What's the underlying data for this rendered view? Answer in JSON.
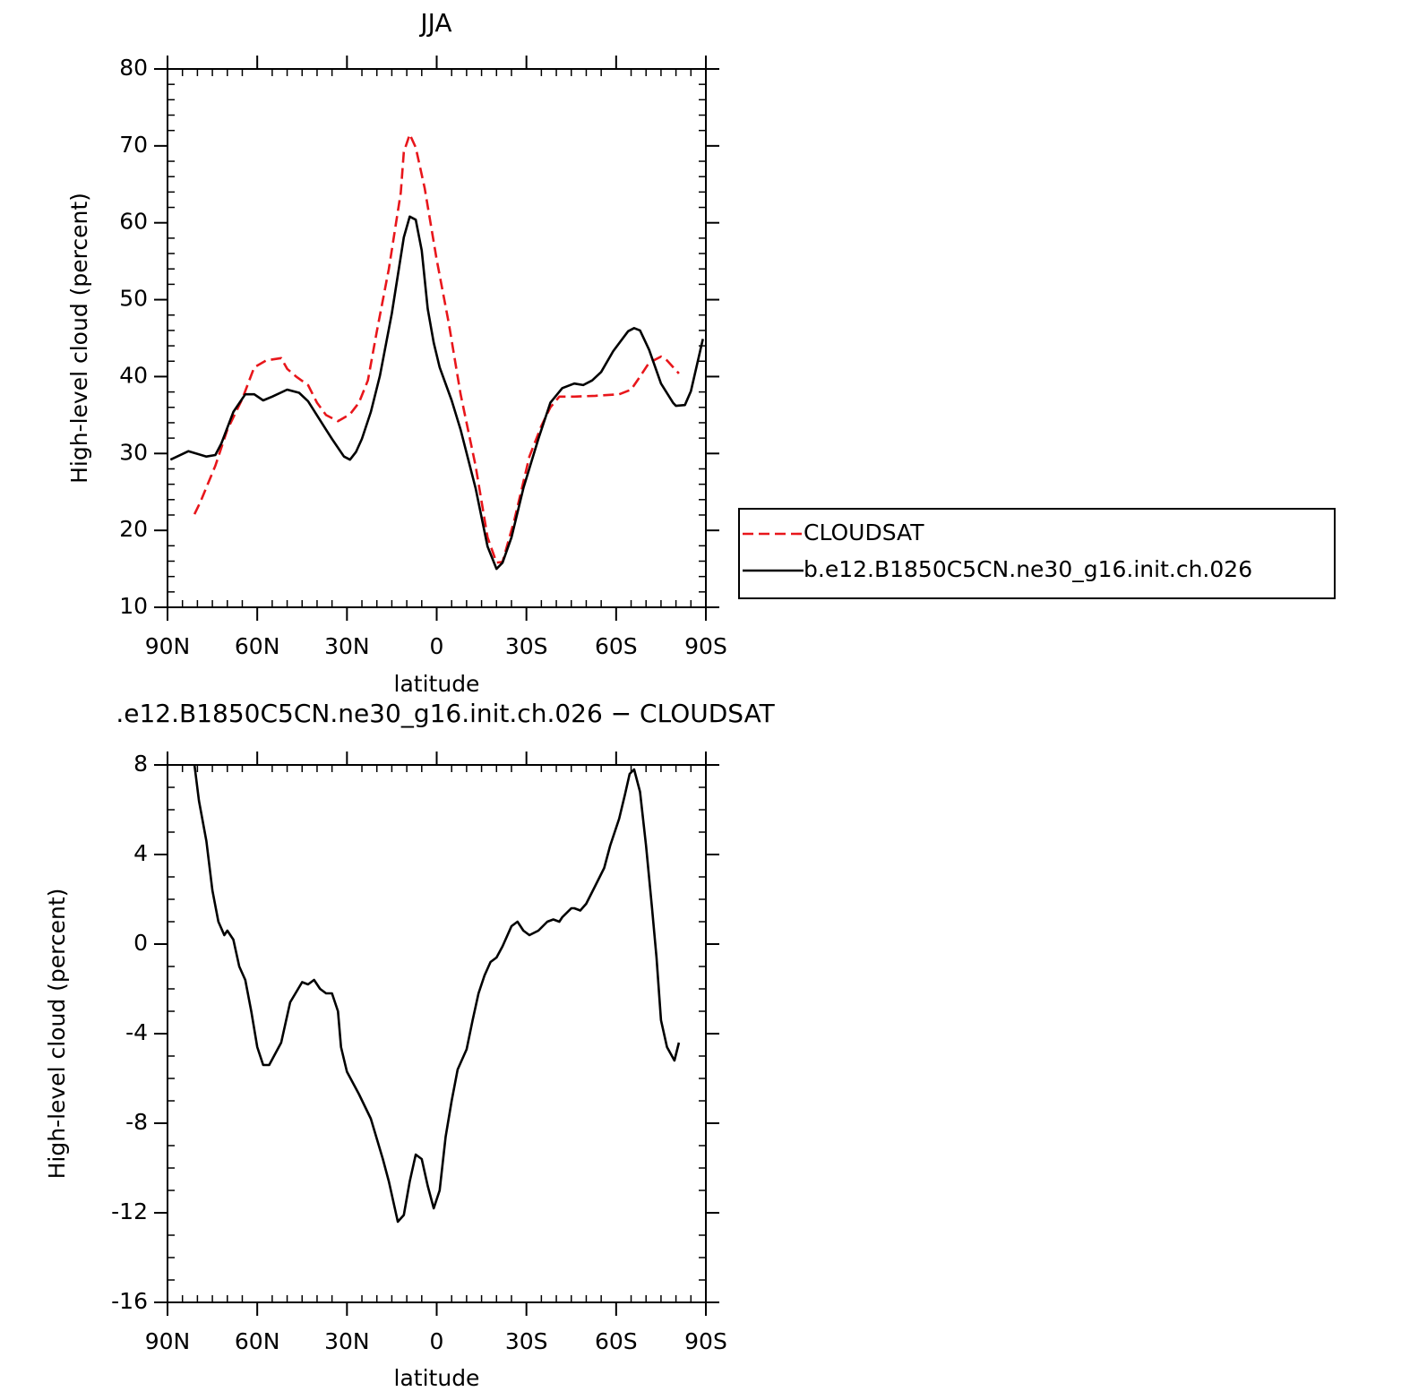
{
  "chart_data": [
    {
      "type": "line",
      "title": "JJA",
      "xlabel": "latitude",
      "ylabel": "High-level cloud (percent)",
      "xlim": [
        90,
        -90
      ],
      "xticks": [
        {
          "value": 90,
          "label": "90N"
        },
        {
          "value": 60,
          "label": "60N"
        },
        {
          "value": 30,
          "label": "30N"
        },
        0,
        {
          "value": -30,
          "label": "30S"
        },
        {
          "value": -60,
          "label": "60S"
        },
        {
          "value": -90,
          "label": "90S"
        }
      ],
      "ylim": [
        10,
        80
      ],
      "yticks": [
        10,
        20,
        30,
        40,
        50,
        60,
        70,
        80
      ],
      "legend": "right",
      "series": [
        {
          "name": "CLOUDSAT",
          "color": "#e8161b",
          "dashed": true,
          "x": [
            81,
            79,
            74,
            70,
            65,
            61,
            57,
            52,
            50,
            47,
            43,
            40,
            37,
            33,
            29,
            26,
            23,
            20,
            16,
            12,
            11,
            9,
            7,
            4,
            0,
            -4,
            -8,
            -13,
            -17,
            -20,
            -22,
            -26,
            -31,
            -35,
            -38,
            -41,
            -46,
            -53,
            -61,
            -65,
            -68,
            -71,
            -75,
            -77,
            -81
          ],
          "values": [
            22.1,
            23.7,
            28.4,
            33.1,
            37.1,
            41.2,
            42.1,
            42.4,
            41.0,
            40.0,
            38.9,
            36.6,
            35.0,
            34.2,
            35.1,
            36.6,
            39.5,
            45.9,
            54.0,
            63.9,
            69.2,
            71.5,
            69.8,
            64.5,
            55.2,
            47.0,
            37.7,
            28.4,
            19.1,
            15.8,
            15.9,
            21.4,
            29.6,
            33.6,
            36.0,
            37.4,
            37.4,
            37.5,
            37.7,
            38.3,
            40.0,
            41.8,
            42.6,
            42.1,
            40.4
          ]
        },
        {
          "name": "b.e12.B1850C5CN.ne30_g16.init.ch.026",
          "color": "#000000",
          "dashed": false,
          "x": [
            89,
            83,
            77,
            74,
            72,
            68,
            64,
            61,
            58,
            55,
            50,
            46,
            43,
            37,
            35,
            31,
            29,
            27,
            25,
            22,
            19,
            15,
            11,
            9,
            7,
            5,
            3,
            1,
            -1,
            -5,
            -8,
            -13,
            -17,
            -20,
            -22,
            -25,
            -29,
            -34,
            -38,
            -42,
            -46,
            -49,
            -52,
            -55,
            -59,
            -64,
            -66,
            -68,
            -71,
            -75,
            -79,
            -80,
            -83,
            -85,
            -89
          ],
          "values": [
            29.2,
            30.3,
            29.6,
            29.8,
            31.3,
            35.4,
            37.7,
            37.7,
            36.9,
            37.4,
            38.3,
            37.9,
            36.8,
            33.1,
            31.9,
            29.6,
            29.2,
            30.2,
            31.9,
            35.4,
            40.1,
            48.2,
            58.1,
            60.8,
            60.4,
            56.4,
            48.8,
            44.4,
            41.2,
            36.9,
            33.1,
            25.5,
            17.9,
            15.0,
            15.8,
            19.1,
            25.5,
            31.9,
            36.6,
            38.5,
            39.1,
            38.9,
            39.5,
            40.6,
            43.3,
            45.9,
            46.3,
            46.0,
            43.5,
            39.1,
            36.6,
            36.2,
            36.3,
            38.1,
            44.9
          ]
        }
      ]
    },
    {
      "type": "line",
      "title": ".e12.B1850C5CN.ne30_g16.init.ch.026 − CLOUDSAT",
      "xlabel": "latitude",
      "ylabel": "High-level cloud (percent)",
      "xlim": [
        90,
        -90
      ],
      "xticks": [
        {
          "value": 90,
          "label": "90N"
        },
        {
          "value": 60,
          "label": "60N"
        },
        {
          "value": 30,
          "label": "30N"
        },
        0,
        {
          "value": -30,
          "label": "30S"
        },
        {
          "value": -60,
          "label": "60S"
        },
        {
          "value": -90,
          "label": "90S"
        }
      ],
      "ylim": [
        -16,
        8
      ],
      "yticks": [
        -16,
        -12,
        -8,
        -4,
        0,
        4,
        8
      ],
      "color": "#000000",
      "x": [
        81,
        79.5,
        77,
        75,
        73,
        71,
        70,
        68,
        66,
        64,
        62,
        60,
        58,
        56,
        52,
        49,
        45,
        43,
        41,
        39,
        37,
        35,
        33,
        32,
        30,
        26,
        22,
        18,
        16,
        13,
        11,
        9,
        7,
        5,
        3,
        1,
        -1,
        -3,
        -5,
        -7,
        -10,
        -12,
        -14,
        -16,
        -18,
        -20,
        -22,
        -25,
        -27,
        -29,
        -31,
        -34,
        -37,
        -39,
        -41,
        -42,
        -45,
        -46,
        -48,
        -50,
        -53,
        -56,
        -58,
        -61,
        -63,
        -64.5,
        -66,
        -68,
        -70,
        -72,
        -73.5,
        -75,
        -77,
        -79.5,
        -81
      ],
      "values": [
        8.0,
        6.4,
        4.6,
        2.4,
        1.0,
        0.4,
        0.6,
        0.2,
        -1.0,
        -1.6,
        -3.0,
        -4.6,
        -5.4,
        -5.4,
        -4.4,
        -2.6,
        -1.7,
        -1.8,
        -1.6,
        -2.0,
        -2.2,
        -2.2,
        -3.0,
        -4.6,
        -5.7,
        -6.7,
        -7.8,
        -9.6,
        -10.6,
        -12.4,
        -12.1,
        -10.6,
        -9.4,
        -9.6,
        -10.8,
        -11.8,
        -11.0,
        -8.6,
        -7.0,
        -5.6,
        -4.7,
        -3.4,
        -2.2,
        -1.4,
        -0.8,
        -0.6,
        -0.1,
        0.8,
        1.0,
        0.6,
        0.4,
        0.6,
        1.0,
        1.1,
        1.0,
        1.2,
        1.6,
        1.6,
        1.5,
        1.8,
        2.6,
        3.4,
        4.4,
        5.6,
        6.7,
        7.6,
        7.8,
        6.8,
        4.4,
        1.6,
        -0.6,
        -3.4,
        -4.6,
        -5.2,
        -4.4
      ]
    }
  ]
}
